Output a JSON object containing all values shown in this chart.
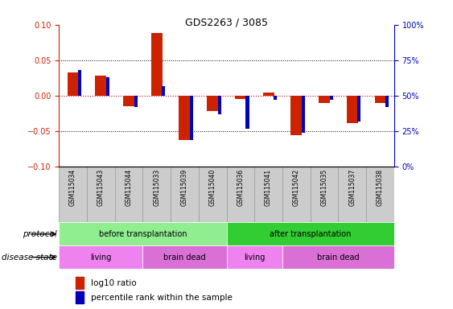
{
  "title": "GDS2263 / 3085",
  "samples": [
    "GSM115034",
    "GSM115043",
    "GSM115044",
    "GSM115033",
    "GSM115039",
    "GSM115040",
    "GSM115036",
    "GSM115041",
    "GSM115042",
    "GSM115035",
    "GSM115037",
    "GSM115038"
  ],
  "log10_ratio": [
    0.033,
    0.028,
    -0.015,
    0.088,
    -0.062,
    -0.022,
    -0.005,
    0.005,
    -0.055,
    -0.01,
    -0.038,
    -0.01
  ],
  "percentile_rank": [
    0.68,
    0.63,
    0.42,
    0.57,
    0.19,
    0.37,
    0.27,
    0.47,
    0.24,
    0.47,
    0.32,
    0.42
  ],
  "ylim": [
    -0.1,
    0.1
  ],
  "yticks_left": [
    -0.1,
    -0.05,
    0,
    0.05,
    0.1
  ],
  "yticks_right": [
    0,
    25,
    50,
    75,
    100
  ],
  "protocol_groups": [
    {
      "label": "before transplantation",
      "start": 0,
      "end": 6,
      "color": "#90EE90"
    },
    {
      "label": "after transplantation",
      "start": 6,
      "end": 12,
      "color": "#32CD32"
    }
  ],
  "disease_groups": [
    {
      "label": "living",
      "start": 0,
      "end": 3,
      "color": "#EE82EE"
    },
    {
      "label": "brain dead",
      "start": 3,
      "end": 6,
      "color": "#DA70D6"
    },
    {
      "label": "living",
      "start": 6,
      "end": 8,
      "color": "#EE82EE"
    },
    {
      "label": "brain dead",
      "start": 8,
      "end": 12,
      "color": "#DA70D6"
    }
  ],
  "bar_color_red": "#CC2200",
  "bar_color_blue": "#0000BB",
  "zero_line_color": "#CC0000",
  "left_axis_color": "#CC2200",
  "right_axis_color": "#0000BB",
  "legend_red_label": "log10 ratio",
  "legend_blue_label": "percentile rank within the sample",
  "protocol_label": "protocol",
  "disease_label": "disease state",
  "sample_bg_color": "#CCCCCC",
  "sample_border_color": "#999999"
}
